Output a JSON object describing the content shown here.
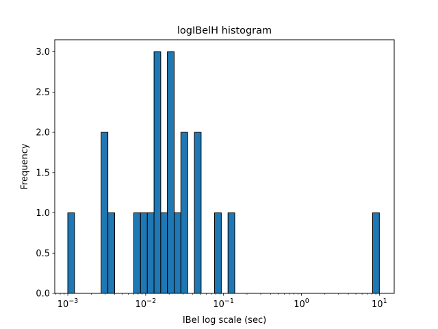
{
  "chart_data": {
    "type": "bar",
    "title": "logIBelH histogram",
    "xlabel": "IBeI log scale (sec)",
    "ylabel": "Frequency",
    "x_scale": "log",
    "xlim": [
      0.00068,
      15.5
    ],
    "ylim": [
      0,
      3.15
    ],
    "x_ticks": [
      {
        "value": 0.001,
        "base": "10",
        "exp": "−3"
      },
      {
        "value": 0.01,
        "base": "10",
        "exp": "−2"
      },
      {
        "value": 0.1,
        "base": "10",
        "exp": "−1"
      },
      {
        "value": 1,
        "base": "10",
        "exp": "0"
      },
      {
        "value": 10,
        "base": "10",
        "exp": "1"
      }
    ],
    "y_ticks": [
      "0.0",
      "0.5",
      "1.0",
      "1.5",
      "2.0",
      "2.5",
      "3.0"
    ],
    "bar_color": "#1f77b4",
    "edge_color": "#000000",
    "bins": [
      {
        "x_start": 0.001,
        "x_end": 0.00122,
        "count": 1
      },
      {
        "x_start": 0.00268,
        "x_end": 0.00327,
        "count": 2
      },
      {
        "x_start": 0.00327,
        "x_end": 0.00399,
        "count": 1
      },
      {
        "x_start": 0.00703,
        "x_end": 0.00858,
        "count": 1
      },
      {
        "x_start": 0.00858,
        "x_end": 0.0105,
        "count": 1
      },
      {
        "x_start": 0.0105,
        "x_end": 0.0128,
        "count": 1
      },
      {
        "x_start": 0.0128,
        "x_end": 0.0156,
        "count": 3
      },
      {
        "x_start": 0.0156,
        "x_end": 0.019,
        "count": 1
      },
      {
        "x_start": 0.019,
        "x_end": 0.0232,
        "count": 3
      },
      {
        "x_start": 0.0232,
        "x_end": 0.0283,
        "count": 1
      },
      {
        "x_start": 0.0283,
        "x_end": 0.0346,
        "count": 2
      },
      {
        "x_start": 0.0422,
        "x_end": 0.0515,
        "count": 2
      },
      {
        "x_start": 0.0766,
        "x_end": 0.0935,
        "count": 1
      },
      {
        "x_start": 0.114,
        "x_end": 0.139,
        "count": 1
      },
      {
        "x_start": 8.19,
        "x_end": 10.0,
        "count": 1
      }
    ]
  }
}
